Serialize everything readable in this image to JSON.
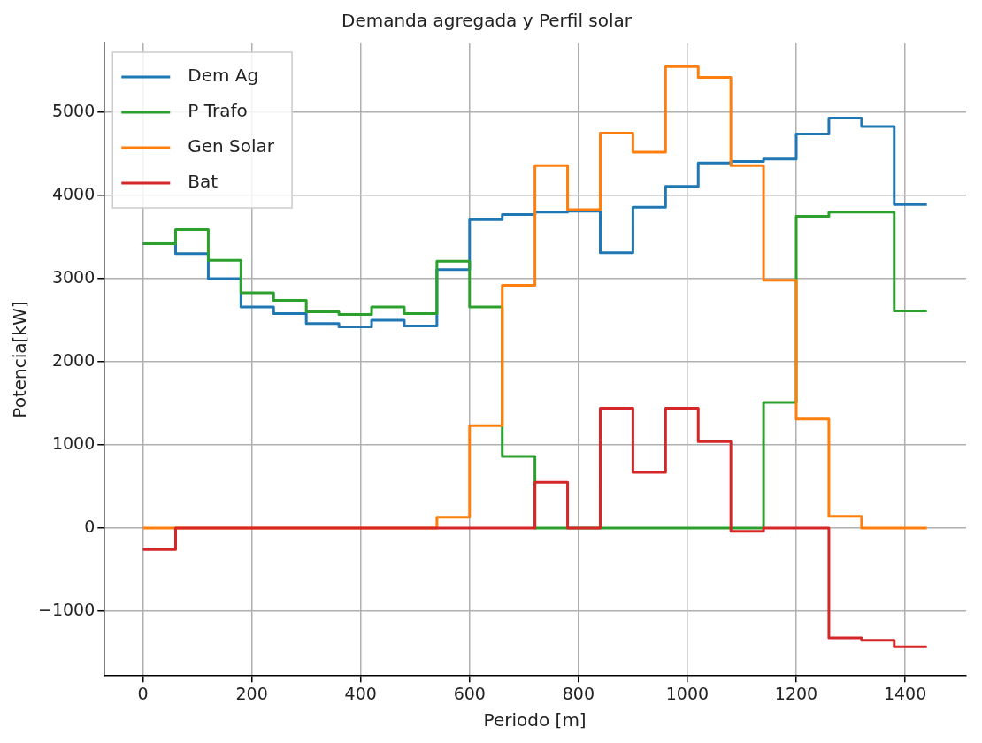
{
  "chart_data": {
    "type": "step",
    "title": "Demanda agregada y Perfil solar",
    "xlabel": "Periodo [m]",
    "ylabel": "Potencia[kW]",
    "x": [
      0,
      60,
      120,
      180,
      240,
      300,
      360,
      420,
      480,
      540,
      600,
      660,
      720,
      780,
      840,
      900,
      960,
      1020,
      1080,
      1140,
      1200,
      1260,
      1320,
      1380,
      1440
    ],
    "series": [
      {
        "name": "Dem Ag",
        "color": "#1f77b4",
        "values": [
          3420,
          3300,
          3000,
          2660,
          2580,
          2460,
          2420,
          2500,
          2430,
          3110,
          3710,
          3770,
          3800,
          3810,
          3310,
          3860,
          4110,
          4390,
          4410,
          4440,
          4740,
          4930,
          4830,
          3890,
          3890
        ]
      },
      {
        "name": "P Trafo",
        "color": "#2ca02c",
        "values": [
          3420,
          3590,
          3220,
          2830,
          2740,
          2600,
          2570,
          2660,
          2580,
          3210,
          2660,
          860,
          0,
          0,
          0,
          0,
          0,
          0,
          0,
          1510,
          3750,
          3800,
          3800,
          2610,
          2610
        ]
      },
      {
        "name": "Gen Solar",
        "color": "#ff7f0e",
        "values": [
          0,
          0,
          0,
          0,
          0,
          0,
          0,
          0,
          0,
          130,
          1230,
          2920,
          4360,
          3830,
          4750,
          4520,
          5550,
          5420,
          4360,
          2980,
          1310,
          140,
          0,
          0,
          0
        ]
      },
      {
        "name": "Bat",
        "color": "#d62728",
        "values": [
          -260,
          0,
          0,
          0,
          0,
          0,
          0,
          0,
          0,
          0,
          0,
          0,
          550,
          0,
          1440,
          670,
          1440,
          1040,
          -40,
          0,
          0,
          -1320,
          -1350,
          -1430,
          -1430
        ]
      }
    ],
    "xlim": [
      -72,
      1512
    ],
    "xticks": [
      0,
      200,
      400,
      600,
      800,
      1000,
      1200,
      1400
    ],
    "ylim": [
      -1780,
      5830
    ],
    "yticks": [
      -1000,
      0,
      1000,
      2000,
      3000,
      4000,
      5000
    ],
    "grid": true,
    "legend": "top left"
  }
}
